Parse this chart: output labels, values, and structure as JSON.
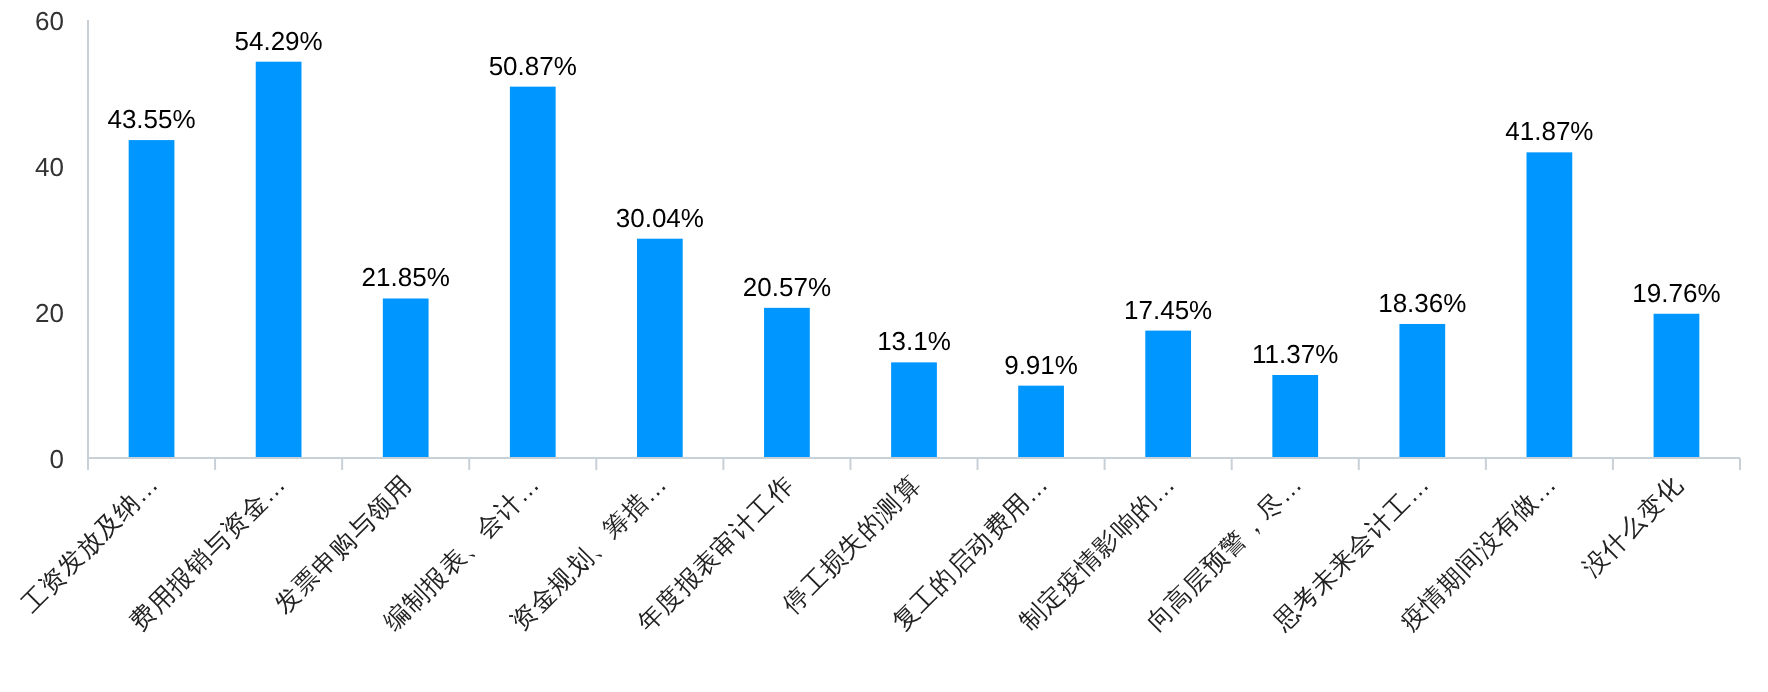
{
  "chart_data": {
    "type": "bar",
    "categories": [
      "工资发放及纳…",
      "费用报销与资金…",
      "发票申购与领用",
      "编制报表、会计…",
      "资金规划、筹措…",
      "年度报表审计工作",
      "停工损失的测算",
      "复工的启动费用…",
      "制定疫情影响的…",
      "向高层预警，尽…",
      "思考未来会计工…",
      "疫情期间没有做…",
      "没什么变化"
    ],
    "values": [
      43.55,
      54.29,
      21.85,
      50.87,
      30.04,
      20.57,
      13.1,
      9.91,
      17.45,
      11.37,
      18.36,
      41.87,
      19.76
    ],
    "value_labels": [
      "43.55%",
      "54.29%",
      "21.85%",
      "50.87%",
      "30.04%",
      "20.57%",
      "13.1%",
      "9.91%",
      "17.45%",
      "11.37%",
      "18.36%",
      "41.87%",
      "19.76%"
    ],
    "color": "#0096ff",
    "ylim": [
      0,
      60
    ],
    "yticks": [
      0,
      20,
      40,
      60
    ],
    "grid": false
  }
}
